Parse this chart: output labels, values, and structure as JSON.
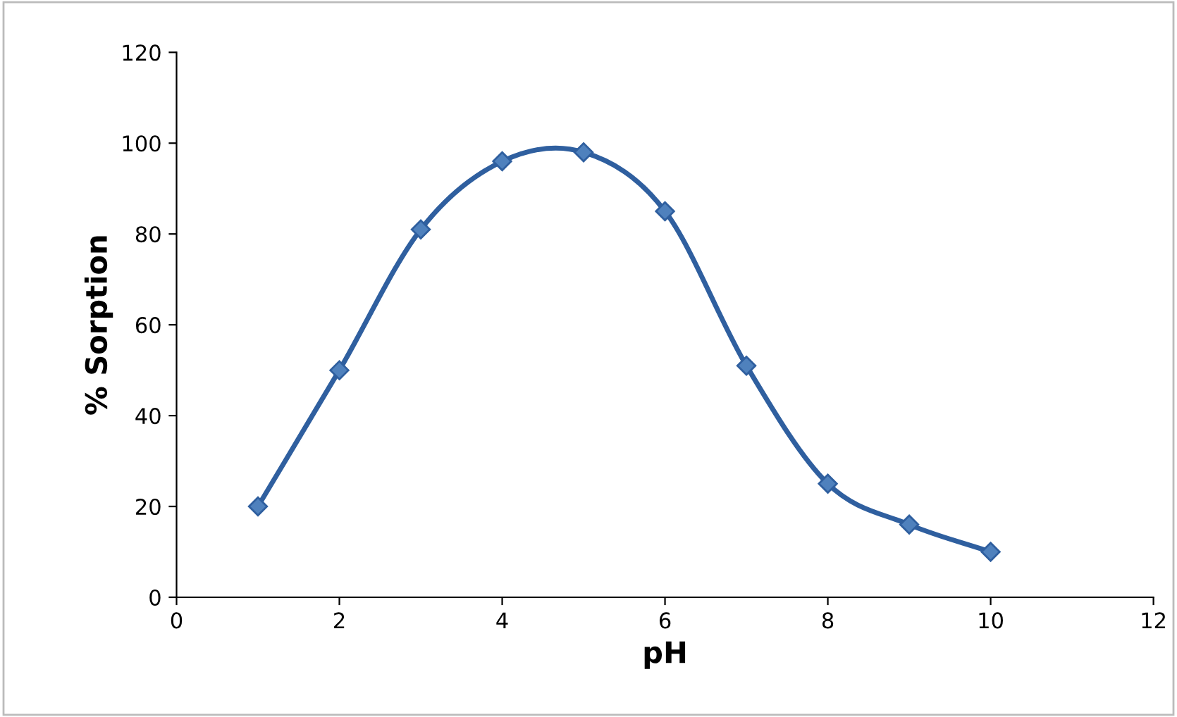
{
  "chart_data": {
    "type": "line",
    "xlabel": "pH",
    "ylabel": "% Sorption",
    "x": [
      1,
      2,
      3,
      4,
      5,
      6,
      7,
      8,
      9,
      10
    ],
    "series": [
      {
        "color": "#2f5f9f",
        "values": [
          20,
          50,
          81,
          96,
          98,
          85,
          51,
          25,
          16,
          10
        ]
      }
    ],
    "xlim": [
      0,
      12
    ],
    "xticks": [
      0,
      2,
      4,
      6,
      8,
      10,
      12
    ],
    "ylim": [
      0,
      120
    ],
    "yticks": [
      0,
      20,
      40,
      60,
      80,
      100,
      120
    ],
    "grid": false,
    "legend": false,
    "marker": "diamond",
    "line_style": "solid"
  }
}
